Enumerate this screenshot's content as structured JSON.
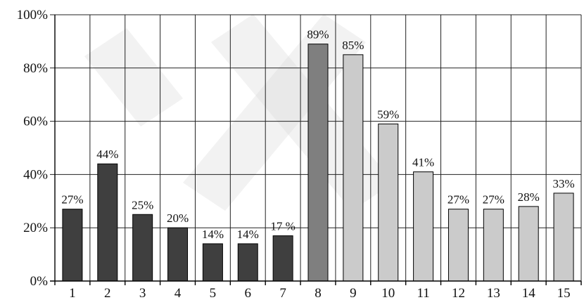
{
  "chart_data": {
    "type": "bar",
    "categories": [
      "1",
      "2",
      "3",
      "4",
      "5",
      "6",
      "7",
      "8",
      "9",
      "10",
      "11",
      "12",
      "13",
      "14",
      "15"
    ],
    "values": [
      27,
      44,
      25,
      20,
      14,
      14,
      17,
      89,
      85,
      59,
      41,
      27,
      27,
      28,
      33
    ],
    "data_labels": [
      "27%",
      "44%",
      "25%",
      "20%",
      "14%",
      "14%",
      "17 %",
      "89%",
      "85%",
      "59%",
      "41%",
      "27%",
      "27%",
      "28%",
      "33%"
    ],
    "bar_colors": [
      "#3f3f3f",
      "#3f3f3f",
      "#3f3f3f",
      "#3f3f3f",
      "#3f3f3f",
      "#3f3f3f",
      "#3f3f3f",
      "#7f7f7f",
      "#cbcbcb",
      "#cbcbcb",
      "#cbcbcb",
      "#cbcbcb",
      "#cbcbcb",
      "#cbcbcb",
      "#cbcbcb"
    ],
    "y_ticks": [
      0,
      20,
      40,
      60,
      80,
      100
    ],
    "y_tick_labels": [
      "0%",
      "20%",
      "40%",
      "60%",
      "80%",
      "100%"
    ],
    "ylim": [
      0,
      100
    ],
    "title": "",
    "xlabel": "",
    "ylabel": "",
    "grid": "on",
    "legend": "none"
  }
}
